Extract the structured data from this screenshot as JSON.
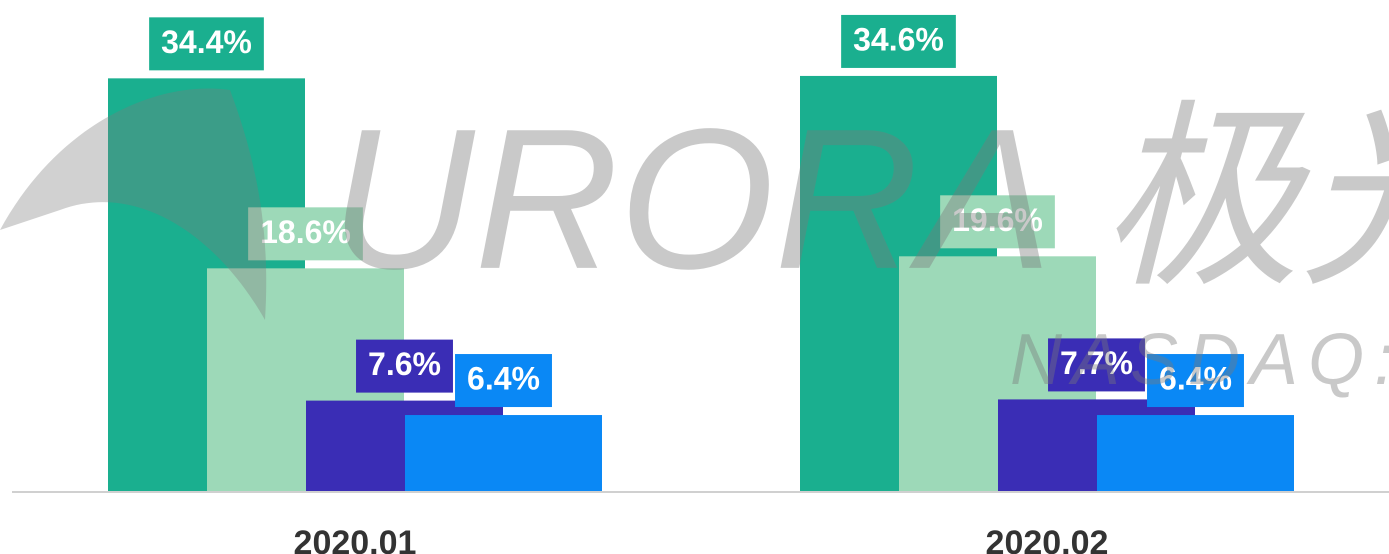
{
  "chart_data": {
    "type": "bar",
    "categories": [
      "2020.01",
      "2020.02"
    ],
    "series": [
      {
        "color": "#1aaf8f",
        "values": [
          34.4,
          34.6
        ],
        "value_labels": [
          "34.4%",
          "34.6%"
        ]
      },
      {
        "color": "#9dd9b8",
        "values": [
          18.6,
          19.6
        ],
        "value_labels": [
          "18.6%",
          "19.6%"
        ]
      },
      {
        "color": "#3a2db5",
        "values": [
          7.6,
          7.7
        ],
        "value_labels": [
          "7.6%",
          "7.7%"
        ]
      },
      {
        "color": "#0a88f5",
        "values": [
          6.4,
          6.4
        ],
        "value_labels": [
          "6.4%",
          "6.4%"
        ]
      }
    ],
    "ylim": [
      0,
      40
    ],
    "watermark": {
      "main": "URORA 极光",
      "sub": "NASDAQ:J"
    }
  }
}
